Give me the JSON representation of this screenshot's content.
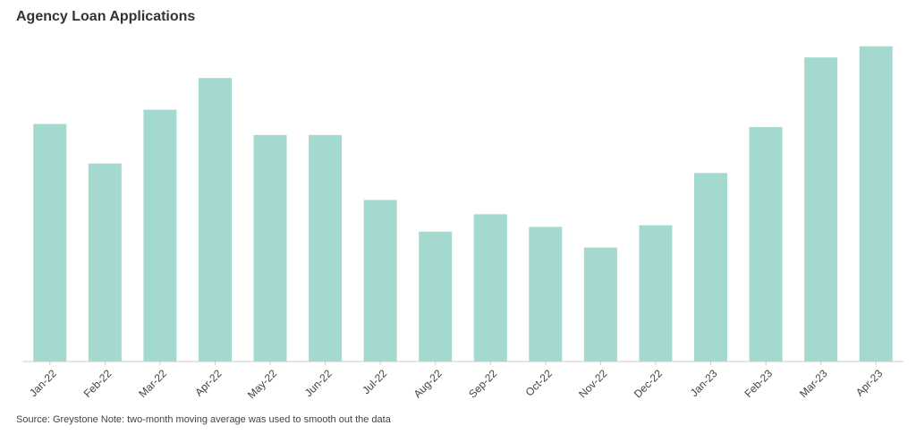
{
  "title": "Agency Loan Applications",
  "footnote": "Source: Greystone Note: two-month moving average was used to smooth out the data",
  "colors": {
    "bar": "#a3d9cf",
    "axis": "#cccccc"
  },
  "chart_data": {
    "type": "bar",
    "title": "Agency Loan Applications",
    "xlabel": "",
    "ylabel": "",
    "categories": [
      "Jan-22",
      "Feb-22",
      "Mar-22",
      "Apr-22",
      "May-22",
      "Jun-22",
      "Jul-22",
      "Aug-22",
      "Sep-22",
      "Oct-22",
      "Nov-22",
      "Dec-22",
      "Jan-23",
      "Feb-23",
      "Mar-23",
      "Apr-23"
    ],
    "values": [
      75,
      62.5,
      79.5,
      89.5,
      71.5,
      71.5,
      51,
      41,
      46.5,
      42.5,
      36,
      43,
      59.5,
      74,
      96,
      99.5
    ],
    "ylim": [
      0,
      100
    ],
    "grid": false,
    "legend": "none"
  }
}
